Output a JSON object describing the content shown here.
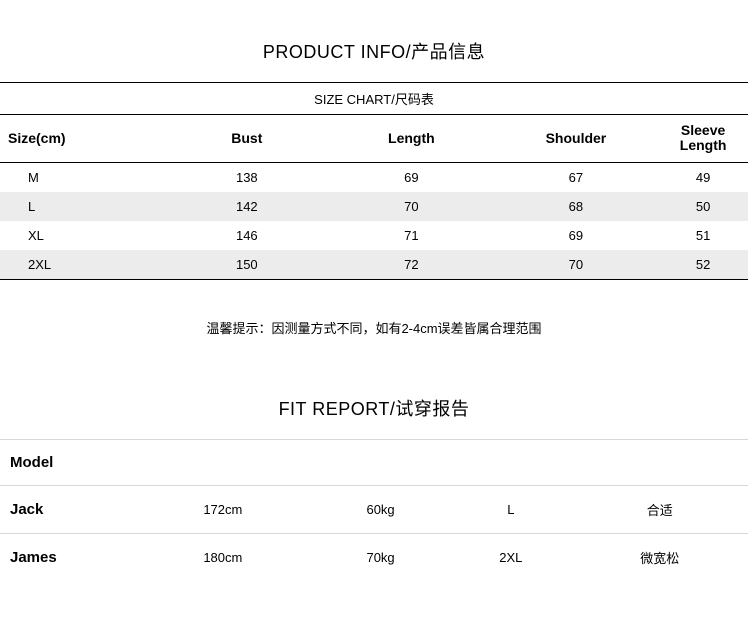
{
  "productInfo": {
    "title": "PRODUCT INFO/产品信息",
    "subTitle": "SIZE CHART/尺码表",
    "columns": [
      "Size(cm)",
      "Bust",
      "Length",
      "Shoulder",
      "Sleeve Length"
    ],
    "rows": [
      {
        "size": "M",
        "bust": "138",
        "length": "69",
        "shoulder": "67",
        "sleeve": "49"
      },
      {
        "size": "L",
        "bust": "142",
        "length": "70",
        "shoulder": "68",
        "sleeve": "50"
      },
      {
        "size": "XL",
        "bust": "146",
        "length": "71",
        "shoulder": "69",
        "sleeve": "51"
      },
      {
        "size": "2XL",
        "bust": "150",
        "length": "72",
        "shoulder": "70",
        "sleeve": "52"
      }
    ],
    "note": "温馨提示：因测量方式不同，如有2-4cm误差皆属合理范围"
  },
  "fitReport": {
    "title": "FIT REPORT/试穿报告",
    "headerLabel": "Model",
    "rows": [
      {
        "name": "Jack",
        "height": "172cm",
        "weight": "60kg",
        "size": "L",
        "fit": "合适"
      },
      {
        "name": "James",
        "height": "180cm",
        "weight": "70kg",
        "size": "2XL",
        "fit": "微宽松"
      }
    ]
  },
  "style": {
    "background": "#ffffff",
    "text_color": "#000000",
    "alt_row_bg": "#ececec",
    "border_color": "#000000",
    "fit_border_color": "#d8d8d8",
    "title_fontsize": 18,
    "body_fontsize": 13
  }
}
